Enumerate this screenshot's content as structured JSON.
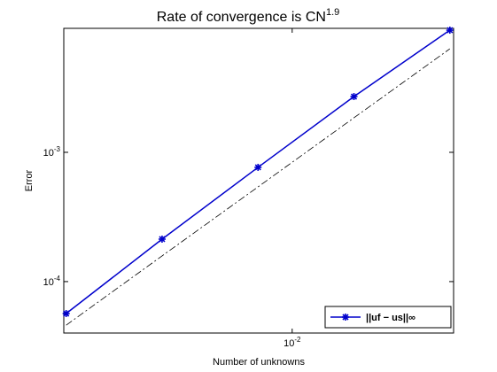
{
  "chart_data": {
    "type": "line",
    "title": "Rate of convergence is CN",
    "title_superscript": "1.9",
    "x_label": "Number of unknowns",
    "y_label": "Error",
    "log_x": true,
    "log_y": true,
    "x": [
      0.001953125,
      0.00390625,
      0.0078125,
      0.015625,
      0.03125
    ],
    "series": [
      {
        "name": "||uf − us||∞",
        "color": "#0000cc",
        "marker": "star",
        "values": [
          5.66e-05,
          0.000213,
          0.000765,
          0.0027,
          0.00881
        ]
      },
      {
        "color": "#000000",
        "dash": "dashdot",
        "values": [
          4.6e-05,
          0.000158,
          0.00054,
          0.00185,
          0.00632
        ]
      }
    ],
    "xlim": [
      0.00192,
      0.0321
    ],
    "ylim": [
      4e-05,
      0.0091
    ],
    "xticks": [
      {
        "value": 0.01,
        "label": "10^-2"
      }
    ],
    "yticks": [
      {
        "value": 0.0001,
        "label": "10^-4"
      },
      {
        "value": 0.001,
        "label": "10^-3"
      }
    ],
    "legend": "lower right"
  }
}
